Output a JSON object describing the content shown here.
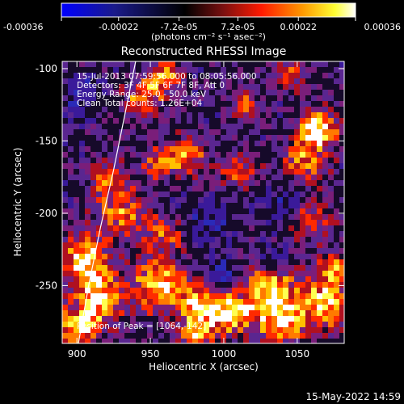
{
  "chart_data": {
    "type": "heatmap",
    "title": "Reconstructed RHESSI Image",
    "xlabel": "Heliocentric X (arcsec)",
    "ylabel": "Heliocentric Y (arcsec)",
    "xlim": [
      890,
      1082
    ],
    "ylim": [
      -290,
      -95
    ],
    "x_ticks": [
      900,
      950,
      1000,
      1050
    ],
    "x_tick_labels": [
      "900",
      "950",
      "1000",
      "1050"
    ],
    "y_ticks": [
      -100,
      -150,
      -200,
      -250
    ],
    "y_tick_labels": [
      "-100",
      "-150",
      "-200",
      "-250"
    ],
    "colorbar": {
      "min": -0.00036,
      "max": 0.00036,
      "ticks": [
        -0.00036,
        -0.00022,
        -7.2e-05,
        7.2e-05,
        0.00022,
        0.00036
      ],
      "tick_labels": [
        "-0.00036",
        "-0.00022",
        "-7.2e-05",
        "7.2e-05",
        "0.00022",
        "0.00036"
      ],
      "unit_label": "(photons cm⁻² s⁻¹ asec⁻²)",
      "colors": [
        "#0000ff",
        "#000000",
        "#6a1ab0",
        "#ff0000",
        "#ff8800",
        "#ffff00",
        "#ffffff"
      ]
    },
    "annotations": [
      "15-Jul-2013 07:59:56.000 to 08:05:56.000",
      "Detectors: 3F 4F 5F 6F 7F 8F, Att 0",
      "Energy Range: 25.0 - 50.0 keV",
      "Clean     Total counts: 1.26E+04"
    ],
    "peak_label": "Position of Peak = [1064,-142]",
    "peak": {
      "x": 1064,
      "y": -142
    },
    "hot_spots": [
      {
        "x": 1064,
        "y": -142,
        "v": 1.0,
        "r": 9
      },
      {
        "x": 1055,
        "y": -165,
        "v": 0.65,
        "r": 10
      },
      {
        "x": 1030,
        "y": -250,
        "v": 0.8,
        "r": 14
      },
      {
        "x": 1070,
        "y": -262,
        "v": 0.75,
        "r": 12
      },
      {
        "x": 1040,
        "y": -275,
        "v": 0.7,
        "r": 12
      },
      {
        "x": 905,
        "y": -232,
        "v": 0.85,
        "r": 12
      },
      {
        "x": 915,
        "y": -260,
        "v": 0.75,
        "r": 12
      },
      {
        "x": 900,
        "y": -280,
        "v": 0.7,
        "r": 10
      },
      {
        "x": 955,
        "y": -250,
        "v": 0.8,
        "r": 12
      },
      {
        "x": 985,
        "y": -262,
        "v": 0.75,
        "r": 12
      },
      {
        "x": 1005,
        "y": -270,
        "v": 0.7,
        "r": 10
      },
      {
        "x": 945,
        "y": -120,
        "v": 0.65,
        "r": 10
      },
      {
        "x": 960,
        "y": -105,
        "v": 0.6,
        "r": 8
      },
      {
        "x": 975,
        "y": -160,
        "v": 0.6,
        "r": 10
      },
      {
        "x": 955,
        "y": -165,
        "v": 0.55,
        "r": 8
      },
      {
        "x": 1010,
        "y": -170,
        "v": 0.5,
        "r": 9
      },
      {
        "x": 930,
        "y": -200,
        "v": 0.55,
        "r": 12
      },
      {
        "x": 960,
        "y": -215,
        "v": 0.5,
        "r": 10
      },
      {
        "x": 1045,
        "y": -105,
        "v": 0.5,
        "r": 8
      },
      {
        "x": 1015,
        "y": -125,
        "v": 0.45,
        "r": 8
      },
      {
        "x": 920,
        "y": -175,
        "v": 0.45,
        "r": 10
      },
      {
        "x": 1060,
        "y": -205,
        "v": 0.45,
        "r": 10
      },
      {
        "x": 980,
        "y": -285,
        "v": 0.55,
        "r": 8
      },
      {
        "x": 1075,
        "y": -240,
        "v": 0.55,
        "r": 8
      }
    ],
    "cold_spots": [
      {
        "x": 1000,
        "y": -245,
        "v": -0.5,
        "r": 9
      },
      {
        "x": 1035,
        "y": -232,
        "v": -0.6,
        "r": 7
      },
      {
        "x": 905,
        "y": -118,
        "v": -0.4,
        "r": 9
      },
      {
        "x": 990,
        "y": -205,
        "v": -0.35,
        "r": 10
      },
      {
        "x": 1040,
        "y": -195,
        "v": -0.3,
        "r": 9
      }
    ],
    "limb_curve": [
      {
        "x": 940,
        "y": -95
      },
      {
        "x": 933,
        "y": -130
      },
      {
        "x": 925,
        "y": -170
      },
      {
        "x": 916,
        "y": -210
      },
      {
        "x": 908,
        "y": -250
      },
      {
        "x": 901,
        "y": -290
      }
    ]
  },
  "footer_timestamp": "15-May-2022 14:59"
}
